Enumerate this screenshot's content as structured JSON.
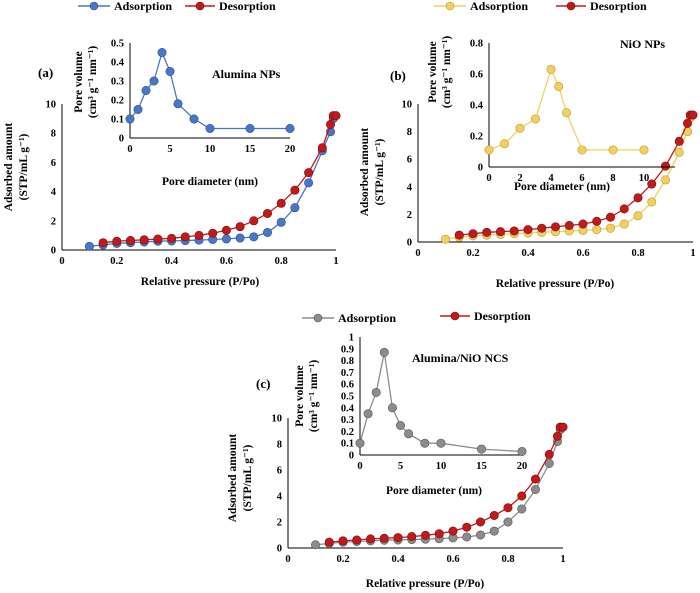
{
  "chart_data": [
    {
      "type": "line",
      "panel_label": "(a)",
      "legend": [
        "Adsorption",
        "Desorption"
      ],
      "colors": {
        "adsorption": "#4a76c9",
        "desorption": "#c21a1a"
      },
      "main": {
        "xlabel": "Relative pressure (P/Po)",
        "ylabel_line1": "Adsorbed amount",
        "ylabel_line2": "(STP/mL g⁻¹)",
        "xlim": [
          0,
          1
        ],
        "ylim": [
          0,
          10
        ],
        "xticks": [
          "0",
          "0.2",
          "0.4",
          "0.6",
          "0.8",
          "1"
        ],
        "yticks": [
          "0",
          "2",
          "4",
          "6",
          "8",
          "10"
        ],
        "series": [
          {
            "name": "Adsorption",
            "x": [
              0.1,
              0.15,
              0.2,
              0.25,
              0.3,
              0.35,
              0.4,
              0.45,
              0.5,
              0.55,
              0.6,
              0.65,
              0.7,
              0.75,
              0.8,
              0.85,
              0.9,
              0.95,
              0.98,
              0.99
            ],
            "y": [
              0.25,
              0.35,
              0.45,
              0.5,
              0.55,
              0.6,
              0.62,
              0.65,
              0.68,
              0.72,
              0.76,
              0.82,
              0.9,
              1.2,
              1.9,
              2.9,
              4.6,
              6.8,
              8.1,
              9.0
            ]
          },
          {
            "name": "Desorption",
            "x": [
              0.15,
              0.2,
              0.25,
              0.3,
              0.35,
              0.4,
              0.45,
              0.5,
              0.55,
              0.6,
              0.65,
              0.7,
              0.75,
              0.8,
              0.85,
              0.9,
              0.95,
              0.98,
              0.99,
              1.0
            ],
            "y": [
              0.5,
              0.6,
              0.65,
              0.7,
              0.75,
              0.8,
              0.9,
              1.0,
              1.15,
              1.35,
              1.6,
              2.0,
              2.5,
              3.2,
              4.1,
              5.3,
              7.0,
              8.6,
              9.2,
              9.2
            ]
          }
        ]
      },
      "inset": {
        "title": "Alumina NPs",
        "xlabel": "Pore diameter (nm)",
        "ylabel_line1": "Pore volume",
        "ylabel_line2": "(cm³ g⁻¹ nm⁻¹)",
        "xlim": [
          0,
          20
        ],
        "ylim": [
          0,
          0.5
        ],
        "xticks": [
          "0",
          "5",
          "10",
          "15",
          "20"
        ],
        "yticks": [
          "0",
          "0.1",
          "0.2",
          "0.3",
          "0.4",
          "0.5"
        ],
        "series": [
          {
            "name": "Pore size distribution",
            "x": [
              0,
              1,
              2,
              3,
              4,
              5,
              6,
              8,
              10,
              15,
              20
            ],
            "y": [
              0.1,
              0.15,
              0.25,
              0.3,
              0.45,
              0.35,
              0.18,
              0.1,
              0.05,
              0.05,
              0.05
            ]
          }
        ]
      }
    },
    {
      "type": "line",
      "panel_label": "(b)",
      "legend": [
        "Adsorption",
        "Desorption"
      ],
      "colors": {
        "adsorption": "#f2d060",
        "desorption": "#c21a1a"
      },
      "main": {
        "xlabel": "Relative pressure (P/Po)",
        "ylabel_line1": "Adsorbed amount",
        "ylabel_line2": "(STP/mL g⁻¹)",
        "xlim": [
          0,
          1
        ],
        "ylim": [
          0,
          10
        ],
        "xticks": [
          "0",
          "0.2",
          "0.4",
          "0.6",
          "0.8",
          "1"
        ],
        "yticks": [
          "0",
          "2",
          "4",
          "6",
          "8",
          "10"
        ],
        "series": [
          {
            "name": "Adsorption",
            "x": [
              0.1,
              0.15,
              0.2,
              0.25,
              0.3,
              0.35,
              0.4,
              0.45,
              0.5,
              0.55,
              0.6,
              0.65,
              0.7,
              0.75,
              0.8,
              0.85,
              0.9,
              0.95,
              0.98,
              0.99
            ],
            "y": [
              0.2,
              0.35,
              0.45,
              0.5,
              0.55,
              0.6,
              0.65,
              0.7,
              0.75,
              0.8,
              0.85,
              0.9,
              1.0,
              1.3,
              1.9,
              2.9,
              4.5,
              6.5,
              8.0,
              9.0
            ]
          },
          {
            "name": "Desorption",
            "x": [
              0.15,
              0.2,
              0.25,
              0.3,
              0.35,
              0.4,
              0.45,
              0.5,
              0.55,
              0.6,
              0.65,
              0.7,
              0.75,
              0.8,
              0.85,
              0.9,
              0.95,
              0.98,
              0.99,
              1.0
            ],
            "y": [
              0.5,
              0.6,
              0.7,
              0.75,
              0.8,
              0.9,
              1.0,
              1.1,
              1.2,
              1.3,
              1.5,
              1.8,
              2.4,
              3.2,
              4.2,
              5.5,
              7.3,
              8.6,
              9.2,
              9.2
            ]
          }
        ]
      },
      "inset": {
        "title": "NiO NPs",
        "xlabel": "Pore diameter (nm)",
        "ylabel_line1": "Pore volume",
        "ylabel_line2": "(cm³ g⁻¹ nm⁻¹)",
        "xlim": [
          0,
          12
        ],
        "ylim": [
          0,
          0.8
        ],
        "xticks": [
          "0",
          "2",
          "4",
          "6",
          "8",
          "10"
        ],
        "yticks": [
          "0",
          "0.2",
          "0.4",
          "0.6",
          "0.8"
        ],
        "series": [
          {
            "name": "Pore size distribution",
            "x": [
              0,
              1,
              2,
              3,
              4,
              4.5,
              5,
              6,
              8,
              10
            ],
            "y": [
              0.11,
              0.15,
              0.25,
              0.31,
              0.63,
              0.52,
              0.35,
              0.11,
              0.11,
              0.11
            ]
          }
        ]
      }
    },
    {
      "type": "line",
      "panel_label": "(c)",
      "legend": [
        "Adsorption",
        "Desorption"
      ],
      "colors": {
        "adsorption": "#8c8c8c",
        "desorption": "#c21a1a"
      },
      "main": {
        "xlabel": "Relative pressure (P/Po)",
        "ylabel_line1": "Adsorbed amount",
        "ylabel_line2": "(STP/mL g⁻¹)",
        "xlim": [
          0,
          1
        ],
        "ylim": [
          0,
          10
        ],
        "xticks": [
          "0",
          "0.2",
          "0.4",
          "0.6",
          "0.8",
          "1"
        ],
        "yticks": [
          "0",
          "2",
          "4",
          "6",
          "8",
          "10"
        ],
        "series": [
          {
            "name": "Adsorption",
            "x": [
              0.1,
              0.15,
              0.2,
              0.25,
              0.3,
              0.35,
              0.4,
              0.45,
              0.5,
              0.55,
              0.6,
              0.65,
              0.7,
              0.75,
              0.8,
              0.85,
              0.9,
              0.95,
              0.98,
              0.99
            ],
            "y": [
              0.25,
              0.35,
              0.45,
              0.5,
              0.55,
              0.6,
              0.62,
              0.65,
              0.68,
              0.72,
              0.78,
              0.85,
              1.0,
              1.3,
              2.0,
              3.0,
              4.5,
              6.5,
              8.2,
              9.1
            ]
          },
          {
            "name": "Desorption",
            "x": [
              0.15,
              0.2,
              0.25,
              0.3,
              0.35,
              0.4,
              0.45,
              0.5,
              0.55,
              0.6,
              0.65,
              0.7,
              0.75,
              0.8,
              0.85,
              0.9,
              0.95,
              0.98,
              0.99,
              1.0
            ],
            "y": [
              0.45,
              0.55,
              0.62,
              0.7,
              0.75,
              0.8,
              0.88,
              0.98,
              1.1,
              1.3,
              1.6,
              2.0,
              2.5,
              3.1,
              4.0,
              5.3,
              7.2,
              8.6,
              9.3,
              9.3
            ]
          }
        ]
      },
      "inset": {
        "title": "Alumina/NiO NCS",
        "xlabel": "Pore diameter (nm)",
        "ylabel_line1": "Pore volume",
        "ylabel_line2": "(cm³ g⁻¹ nm⁻¹)",
        "xlim": [
          0,
          20
        ],
        "ylim": [
          0,
          1
        ],
        "xticks": [
          "0",
          "5",
          "10",
          "15",
          "20"
        ],
        "yticks": [
          "0",
          "0.1",
          "0.2",
          "0.3",
          "0.4",
          "0.5",
          "0.6",
          "0.7",
          "0.8",
          "0.9",
          "1"
        ],
        "series": [
          {
            "name": "Pore size distribution",
            "x": [
              0,
              1,
              2,
              3,
              4,
              5,
              6,
              8,
              10,
              15,
              20
            ],
            "y": [
              0.1,
              0.35,
              0.53,
              0.87,
              0.4,
              0.25,
              0.18,
              0.1,
              0.1,
              0.05,
              0.03
            ]
          }
        ]
      }
    }
  ]
}
